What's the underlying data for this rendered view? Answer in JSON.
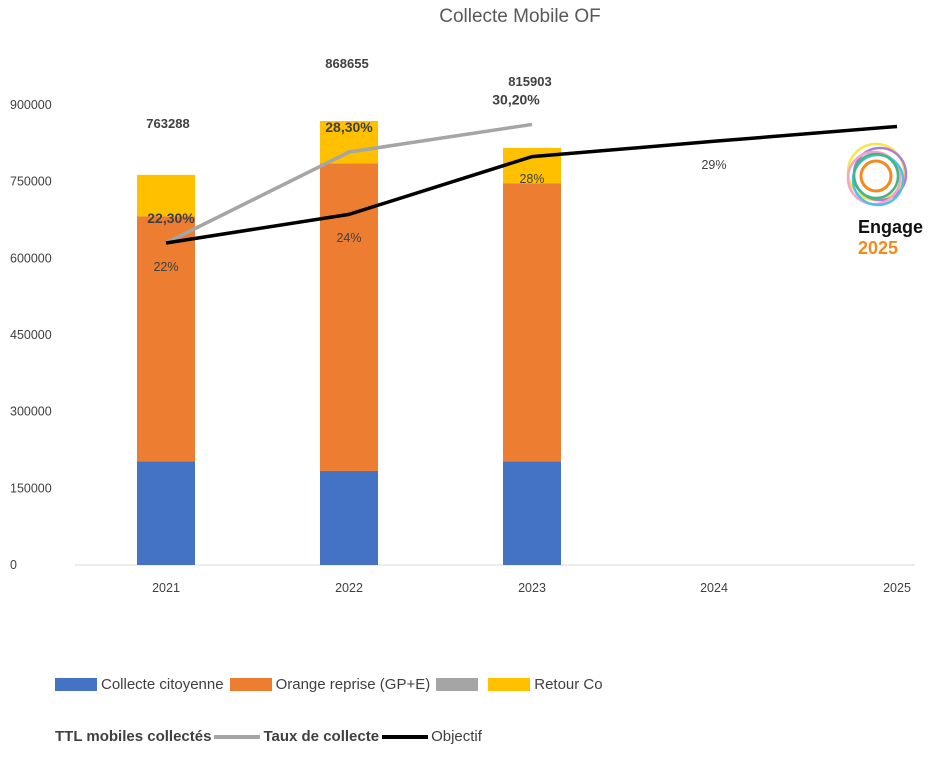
{
  "chart_data": {
    "type": "bar",
    "title": "Collecte Mobile OF",
    "categories": [
      "2021",
      "2022",
      "2023",
      "2024",
      "2025"
    ],
    "ylim": [
      0,
      900000
    ],
    "yticks": [
      "0",
      "150000",
      "300000",
      "450000",
      "600000",
      "750000",
      "900000"
    ],
    "stacked": true,
    "series": [
      {
        "name": "Collecte citoyenne",
        "color": "#4472c4",
        "values": [
          203000,
          184000,
          203000,
          null,
          null
        ]
      },
      {
        "name": "Orange reprise (GP+E)",
        "color": "#ed7d31",
        "values": [
          479000,
          602000,
          544000,
          null,
          null
        ]
      },
      {
        "name": "",
        "color": "#a5a5a5",
        "values": [
          null,
          null,
          null,
          null,
          null
        ]
      },
      {
        "name": "Retour Co",
        "color": "#ffc000",
        "values": [
          81288,
          82655,
          68903,
          null,
          null
        ]
      }
    ],
    "totals": {
      "name": "TTL mobiles collectés",
      "labels": [
        "763288",
        "868655",
        "815903"
      ]
    },
    "lines": [
      {
        "name": "Taux de collecte",
        "color": "#a5a5a5",
        "values": [
          630000,
          808000,
          862000
        ],
        "labels": [
          "22,30%",
          "28,30%",
          "30,20%"
        ]
      },
      {
        "name": "Objectif",
        "color": "#000000",
        "values": [
          630000,
          686000,
          799000,
          829000,
          858000
        ],
        "labels": [
          "22%",
          "24%",
          "28%",
          "29%",
          ""
        ]
      }
    ],
    "grid": false,
    "legend": "bottom"
  },
  "logo": {
    "word": "Engage",
    "year": "2025"
  }
}
